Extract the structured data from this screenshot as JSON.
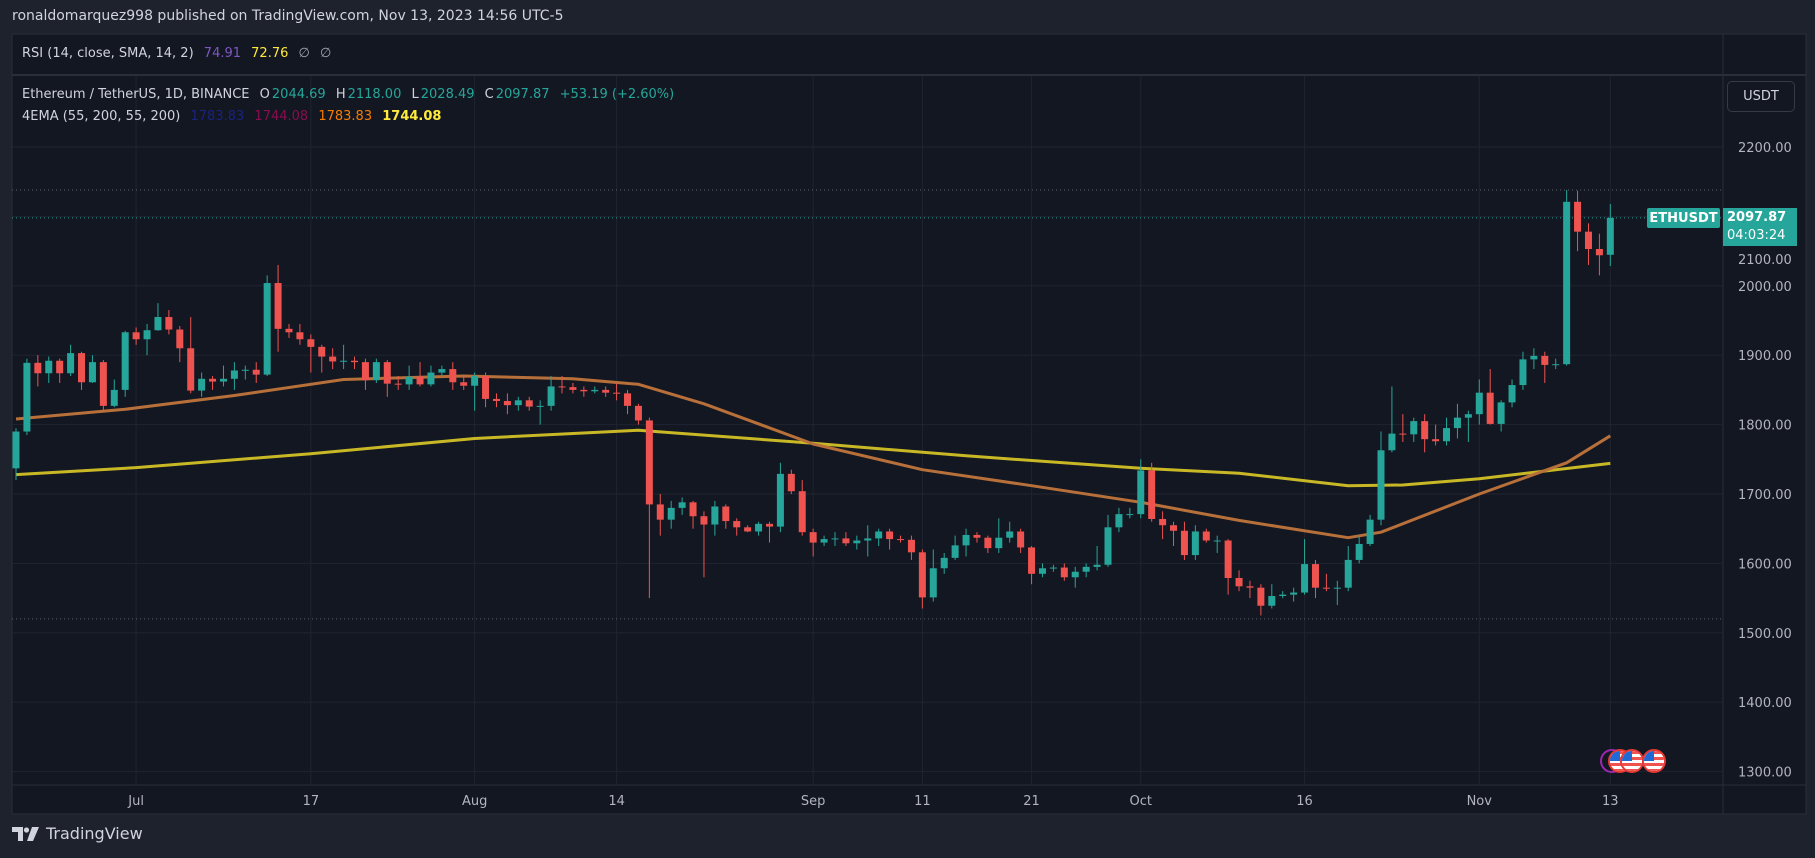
{
  "header": {
    "published": "ronaldomarquez998 published on TradingView.com, Nov 13, 2023 14:56 UTC-5"
  },
  "rsi": {
    "label": "RSI (14, close, SMA, 14, 2)",
    "value1": "74.91",
    "value2": "72.76",
    "na1": "∅",
    "na2": "∅",
    "color1": "#7e57c2",
    "color2": "#ffeb3b"
  },
  "legend": {
    "symbol": "Ethereum / TetherUS, 1D, BINANCE",
    "o_label": "O",
    "o": "2044.69",
    "h_label": "H",
    "h": "2118.00",
    "l_label": "L",
    "l": "2028.49",
    "c_label": "C",
    "c": "2097.87",
    "change": "+53.19 (+2.60%)",
    "ema_label": "4EMA (55, 200, 55, 200)",
    "ema_values": [
      "1783.83",
      "1744.08",
      "1783.83",
      "1744.08"
    ],
    "ema_colors": [
      "#1a237e",
      "#880e4f",
      "#f57c00",
      "#ffeb3b"
    ]
  },
  "price_axis": {
    "currency_button": "USDT"
  },
  "price_tag": {
    "symbol": "ETHUSDT",
    "price": "2097.87",
    "countdown": "04:03:24"
  },
  "footer": {
    "brand": "TradingView"
  },
  "events": {
    "icons": [
      "us-flag-icon",
      "us-flag-icon",
      "us-flag-icon"
    ]
  },
  "colors": {
    "up": "#26a69a",
    "down": "#ef5350",
    "ema55": "#b8703a",
    "ema200": "#c9b826",
    "background": "#131722",
    "grid": "#1f2430"
  },
  "chart_data": {
    "type": "candlestick",
    "symbol": "ETHUSDT",
    "interval": "1D",
    "ylim": [
      1270,
      2280
    ],
    "y_ticks": [
      "2200.00",
      "2100.00",
      "2000.00",
      "1900.00",
      "1800.00",
      "1700.00",
      "1600.00",
      "1500.00",
      "1400.00",
      "1300.00"
    ],
    "y_tick_values": [
      2200,
      2100,
      2000,
      1900,
      1800,
      1700,
      1600,
      1500,
      1400,
      1300
    ],
    "x_ticks": [
      {
        "label": "Jul",
        "date": "2023-07-01"
      },
      {
        "label": "17",
        "date": "2023-07-17"
      },
      {
        "label": "Aug",
        "date": "2023-08-01"
      },
      {
        "label": "14",
        "date": "2023-08-14"
      },
      {
        "label": "Sep",
        "date": "2023-09-01"
      },
      {
        "label": "11",
        "date": "2023-09-11"
      },
      {
        "label": "21",
        "date": "2023-09-21"
      },
      {
        "label": "Oct",
        "date": "2023-10-01"
      },
      {
        "label": "16",
        "date": "2023-10-16"
      },
      {
        "label": "Nov",
        "date": "2023-11-01"
      },
      {
        "label": "13",
        "date": "2023-11-13"
      }
    ],
    "grid": true,
    "high_line": 2138,
    "low_line": 1520,
    "last_price": 2097.87,
    "ohlc": [
      [
        "2023-06-20",
        1737,
        1795,
        1720,
        1790
      ],
      [
        "2023-06-21",
        1790,
        1895,
        1785,
        1889
      ],
      [
        "2023-06-22",
        1889,
        1900,
        1855,
        1874
      ],
      [
        "2023-06-23",
        1874,
        1898,
        1860,
        1892
      ],
      [
        "2023-06-24",
        1892,
        1895,
        1860,
        1874
      ],
      [
        "2023-06-25",
        1874,
        1915,
        1870,
        1903
      ],
      [
        "2023-06-26",
        1903,
        1905,
        1850,
        1861
      ],
      [
        "2023-06-27",
        1861,
        1900,
        1860,
        1890
      ],
      [
        "2023-06-28",
        1890,
        1893,
        1820,
        1827
      ],
      [
        "2023-06-29",
        1827,
        1865,
        1825,
        1850
      ],
      [
        "2023-06-30",
        1850,
        1935,
        1840,
        1933
      ],
      [
        "2023-07-01",
        1933,
        1940,
        1915,
        1923
      ],
      [
        "2023-07-02",
        1923,
        1945,
        1900,
        1936
      ],
      [
        "2023-07-03",
        1936,
        1975,
        1935,
        1955
      ],
      [
        "2023-07-04",
        1955,
        1965,
        1930,
        1937
      ],
      [
        "2023-07-05",
        1937,
        1942,
        1890,
        1910
      ],
      [
        "2023-07-06",
        1910,
        1955,
        1845,
        1849
      ],
      [
        "2023-07-07",
        1849,
        1875,
        1840,
        1866
      ],
      [
        "2023-07-08",
        1866,
        1870,
        1850,
        1862
      ],
      [
        "2023-07-09",
        1862,
        1885,
        1855,
        1866
      ],
      [
        "2023-07-10",
        1866,
        1890,
        1850,
        1878
      ],
      [
        "2023-07-11",
        1878,
        1885,
        1865,
        1879
      ],
      [
        "2023-07-12",
        1879,
        1890,
        1860,
        1872
      ],
      [
        "2023-07-13",
        1872,
        2015,
        1870,
        2004
      ],
      [
        "2023-07-14",
        2004,
        2030,
        1905,
        1938
      ],
      [
        "2023-07-15",
        1938,
        1945,
        1925,
        1933
      ],
      [
        "2023-07-16",
        1933,
        1945,
        1915,
        1923
      ],
      [
        "2023-07-17",
        1923,
        1930,
        1875,
        1912
      ],
      [
        "2023-07-18",
        1912,
        1915,
        1875,
        1898
      ],
      [
        "2023-07-19",
        1898,
        1910,
        1880,
        1891
      ],
      [
        "2023-07-20",
        1891,
        1915,
        1880,
        1892
      ],
      [
        "2023-07-21",
        1892,
        1898,
        1880,
        1890
      ],
      [
        "2023-07-22",
        1890,
        1895,
        1850,
        1864
      ],
      [
        "2023-07-23",
        1864,
        1895,
        1860,
        1890
      ],
      [
        "2023-07-24",
        1890,
        1893,
        1840,
        1859
      ],
      [
        "2023-07-25",
        1859,
        1870,
        1850,
        1858
      ],
      [
        "2023-07-26",
        1858,
        1885,
        1850,
        1869
      ],
      [
        "2023-07-27",
        1869,
        1890,
        1855,
        1858
      ],
      [
        "2023-07-28",
        1858,
        1885,
        1855,
        1875
      ],
      [
        "2023-07-29",
        1875,
        1885,
        1870,
        1880
      ],
      [
        "2023-07-30",
        1880,
        1890,
        1850,
        1861
      ],
      [
        "2023-07-31",
        1861,
        1870,
        1850,
        1856
      ],
      [
        "2023-08-01",
        1856,
        1875,
        1820,
        1870
      ],
      [
        "2023-08-02",
        1870,
        1875,
        1825,
        1837
      ],
      [
        "2023-08-03",
        1837,
        1845,
        1825,
        1834
      ],
      [
        "2023-08-04",
        1834,
        1845,
        1815,
        1828
      ],
      [
        "2023-08-05",
        1828,
        1840,
        1820,
        1835
      ],
      [
        "2023-08-06",
        1835,
        1840,
        1820,
        1826
      ],
      [
        "2023-08-07",
        1826,
        1835,
        1800,
        1827
      ],
      [
        "2023-08-08",
        1827,
        1870,
        1820,
        1855
      ],
      [
        "2023-08-09",
        1855,
        1870,
        1845,
        1854
      ],
      [
        "2023-08-10",
        1854,
        1860,
        1845,
        1850
      ],
      [
        "2023-08-11",
        1850,
        1855,
        1840,
        1848
      ],
      [
        "2023-08-12",
        1848,
        1855,
        1845,
        1850
      ],
      [
        "2023-08-13",
        1850,
        1855,
        1840,
        1846
      ],
      [
        "2023-08-14",
        1846,
        1860,
        1835,
        1845
      ],
      [
        "2023-08-15",
        1845,
        1850,
        1815,
        1827
      ],
      [
        "2023-08-16",
        1827,
        1830,
        1800,
        1806
      ],
      [
        "2023-08-17",
        1806,
        1810,
        1550,
        1685
      ],
      [
        "2023-08-18",
        1685,
        1700,
        1640,
        1663
      ],
      [
        "2023-08-19",
        1663,
        1690,
        1650,
        1680
      ],
      [
        "2023-08-20",
        1680,
        1695,
        1670,
        1688
      ],
      [
        "2023-08-21",
        1688,
        1690,
        1650,
        1668
      ],
      [
        "2023-08-22",
        1668,
        1675,
        1580,
        1656
      ],
      [
        "2023-08-23",
        1656,
        1690,
        1640,
        1682
      ],
      [
        "2023-08-24",
        1682,
        1685,
        1650,
        1661
      ],
      [
        "2023-08-25",
        1661,
        1665,
        1640,
        1652
      ],
      [
        "2023-08-26",
        1652,
        1655,
        1645,
        1646
      ],
      [
        "2023-08-27",
        1646,
        1660,
        1640,
        1657
      ],
      [
        "2023-08-28",
        1657,
        1660,
        1630,
        1653
      ],
      [
        "2023-08-29",
        1653,
        1745,
        1645,
        1729
      ],
      [
        "2023-08-30",
        1729,
        1735,
        1700,
        1704
      ],
      [
        "2023-08-31",
        1704,
        1720,
        1640,
        1645
      ],
      [
        "2023-09-01",
        1645,
        1650,
        1610,
        1630
      ],
      [
        "2023-09-02",
        1630,
        1640,
        1625,
        1635
      ],
      [
        "2023-09-03",
        1635,
        1645,
        1625,
        1636
      ],
      [
        "2023-09-04",
        1636,
        1645,
        1625,
        1629
      ],
      [
        "2023-09-05",
        1629,
        1640,
        1620,
        1633
      ],
      [
        "2023-09-06",
        1633,
        1655,
        1610,
        1636
      ],
      [
        "2023-09-07",
        1636,
        1650,
        1625,
        1646
      ],
      [
        "2023-09-08",
        1646,
        1650,
        1620,
        1635
      ],
      [
        "2023-09-09",
        1635,
        1640,
        1630,
        1634
      ],
      [
        "2023-09-10",
        1634,
        1640,
        1605,
        1616
      ],
      [
        "2023-09-11",
        1616,
        1620,
        1535,
        1551
      ],
      [
        "2023-09-12",
        1551,
        1620,
        1545,
        1593
      ],
      [
        "2023-09-13",
        1593,
        1615,
        1585,
        1608
      ],
      [
        "2023-09-14",
        1608,
        1640,
        1605,
        1626
      ],
      [
        "2023-09-15",
        1626,
        1650,
        1610,
        1641
      ],
      [
        "2023-09-16",
        1641,
        1645,
        1630,
        1637
      ],
      [
        "2023-09-17",
        1637,
        1640,
        1615,
        1622
      ],
      [
        "2023-09-18",
        1622,
        1665,
        1615,
        1637
      ],
      [
        "2023-09-19",
        1637,
        1660,
        1630,
        1646
      ],
      [
        "2023-09-20",
        1646,
        1650,
        1615,
        1623
      ],
      [
        "2023-09-21",
        1623,
        1625,
        1570,
        1585
      ],
      [
        "2023-09-22",
        1585,
        1600,
        1580,
        1593
      ],
      [
        "2023-09-23",
        1593,
        1598,
        1588,
        1594
      ],
      [
        "2023-09-24",
        1594,
        1600,
        1575,
        1580
      ],
      [
        "2023-09-25",
        1580,
        1595,
        1565,
        1588
      ],
      [
        "2023-09-26",
        1588,
        1600,
        1580,
        1595
      ],
      [
        "2023-09-27",
        1595,
        1625,
        1590,
        1598
      ],
      [
        "2023-09-28",
        1598,
        1670,
        1595,
        1652
      ],
      [
        "2023-09-29",
        1652,
        1680,
        1645,
        1671
      ],
      [
        "2023-09-30",
        1671,
        1680,
        1665,
        1671
      ],
      [
        "2023-10-01",
        1671,
        1750,
        1665,
        1734
      ],
      [
        "2023-10-02",
        1734,
        1745,
        1660,
        1664
      ],
      [
        "2023-10-03",
        1664,
        1675,
        1635,
        1655
      ],
      [
        "2023-10-04",
        1655,
        1660,
        1625,
        1647
      ],
      [
        "2023-10-05",
        1647,
        1660,
        1605,
        1612
      ],
      [
        "2023-10-06",
        1612,
        1655,
        1605,
        1646
      ],
      [
        "2023-10-07",
        1646,
        1650,
        1630,
        1633
      ],
      [
        "2023-10-08",
        1633,
        1640,
        1615,
        1633
      ],
      [
        "2023-10-09",
        1633,
        1635,
        1555,
        1579
      ],
      [
        "2023-10-10",
        1579,
        1590,
        1560,
        1567
      ],
      [
        "2023-10-11",
        1567,
        1575,
        1550,
        1565
      ],
      [
        "2023-10-12",
        1565,
        1570,
        1525,
        1539
      ],
      [
        "2023-10-13",
        1539,
        1570,
        1535,
        1553
      ],
      [
        "2023-10-14",
        1553,
        1560,
        1550,
        1555
      ],
      [
        "2023-10-15",
        1555,
        1565,
        1545,
        1558
      ],
      [
        "2023-10-16",
        1558,
        1635,
        1555,
        1599
      ],
      [
        "2023-10-17",
        1599,
        1605,
        1550,
        1565
      ],
      [
        "2023-10-18",
        1565,
        1585,
        1560,
        1564
      ],
      [
        "2023-10-19",
        1564,
        1575,
        1540,
        1565
      ],
      [
        "2023-10-20",
        1565,
        1625,
        1560,
        1605
      ],
      [
        "2023-10-21",
        1605,
        1640,
        1600,
        1628
      ],
      [
        "2023-10-22",
        1628,
        1670,
        1625,
        1663
      ],
      [
        "2023-10-23",
        1663,
        1790,
        1655,
        1763
      ],
      [
        "2023-10-24",
        1763,
        1855,
        1760,
        1787
      ],
      [
        "2023-10-25",
        1787,
        1815,
        1775,
        1786
      ],
      [
        "2023-10-26",
        1786,
        1810,
        1775,
        1805
      ],
      [
        "2023-10-27",
        1805,
        1815,
        1760,
        1779
      ],
      [
        "2023-10-28",
        1779,
        1800,
        1770,
        1776
      ],
      [
        "2023-10-29",
        1776,
        1810,
        1770,
        1795
      ],
      [
        "2023-10-30",
        1795,
        1830,
        1780,
        1810
      ],
      [
        "2023-10-31",
        1810,
        1820,
        1775,
        1815
      ],
      [
        "2023-11-01",
        1815,
        1865,
        1800,
        1846
      ],
      [
        "2023-11-02",
        1846,
        1880,
        1800,
        1801
      ],
      [
        "2023-11-03",
        1801,
        1835,
        1790,
        1832
      ],
      [
        "2023-11-04",
        1832,
        1865,
        1825,
        1857
      ],
      [
        "2023-11-05",
        1857,
        1905,
        1850,
        1894
      ],
      [
        "2023-11-06",
        1894,
        1910,
        1880,
        1899
      ],
      [
        "2023-11-07",
        1899,
        1905,
        1860,
        1886
      ],
      [
        "2023-11-08",
        1886,
        1895,
        1880,
        1887
      ],
      [
        "2023-11-09",
        1887,
        2138,
        1885,
        2121
      ],
      [
        "2023-11-10",
        2121,
        2137,
        2050,
        2078
      ],
      [
        "2023-11-11",
        2078,
        2090,
        2030,
        2053
      ],
      [
        "2023-11-12",
        2053,
        2075,
        2015,
        2044
      ],
      [
        "2023-11-13",
        2044.69,
        2118,
        2028.49,
        2097.87
      ]
    ],
    "ema55": [
      [
        "2023-06-20",
        1808
      ],
      [
        "2023-06-30",
        1822
      ],
      [
        "2023-07-10",
        1842
      ],
      [
        "2023-07-20",
        1865
      ],
      [
        "2023-07-31",
        1870
      ],
      [
        "2023-08-10",
        1866
      ],
      [
        "2023-08-16",
        1858
      ],
      [
        "2023-08-22",
        1830
      ],
      [
        "2023-09-01",
        1772
      ],
      [
        "2023-09-11",
        1735
      ],
      [
        "2023-09-21",
        1712
      ],
      [
        "2023-10-01",
        1688
      ],
      [
        "2023-10-10",
        1662
      ],
      [
        "2023-10-20",
        1637
      ],
      [
        "2023-10-23",
        1645
      ],
      [
        "2023-11-01",
        1700
      ],
      [
        "2023-11-09",
        1745
      ],
      [
        "2023-11-13",
        1783.83
      ]
    ],
    "ema200": [
      [
        "2023-06-20",
        1728
      ],
      [
        "2023-07-01",
        1738
      ],
      [
        "2023-07-17",
        1758
      ],
      [
        "2023-08-01",
        1780
      ],
      [
        "2023-08-16",
        1792
      ],
      [
        "2023-09-01",
        1773
      ],
      [
        "2023-09-15",
        1755
      ],
      [
        "2023-10-01",
        1737
      ],
      [
        "2023-10-10",
        1730
      ],
      [
        "2023-10-20",
        1712
      ],
      [
        "2023-10-25",
        1713
      ],
      [
        "2023-11-01",
        1722
      ],
      [
        "2023-11-13",
        1744.08
      ]
    ]
  }
}
